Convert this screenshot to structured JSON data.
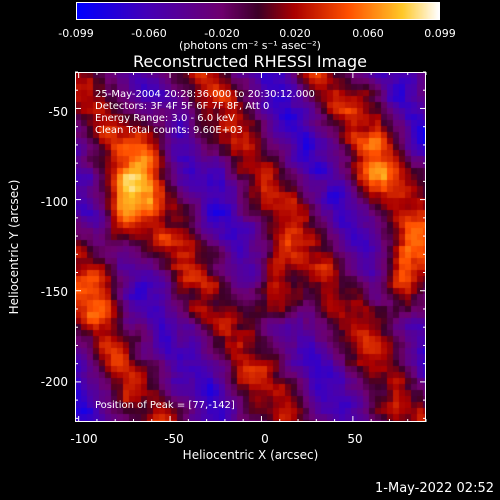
{
  "colorbar": {
    "ticks": [
      "-0.099",
      "-0.060",
      "-0.020",
      "0.020",
      "0.060",
      "0.099"
    ],
    "units": "(photons cm⁻² s⁻¹ asec⁻²)"
  },
  "title": "Reconstructed RHESSI Image",
  "annotations": {
    "time": "25-May-2004 20:28:36.000 to 20:30:12.000",
    "detectors": "Detectors: 3F 4F 5F 6F 7F 8F, Att 0",
    "energy": "Energy Range: 3.0 - 6.0 keV",
    "method": "Clean    Total counts: 9.60E+03",
    "peak": "Position of Peak = [77,-142]"
  },
  "axes": {
    "xlabel": "Heliocentric X (arcsec)",
    "ylabel": "Heliocentric Y (arcsec)",
    "xticks": [
      "-100",
      "-50",
      "0",
      "50"
    ],
    "yticks": [
      "-50",
      "-100",
      "-150",
      "-200"
    ]
  },
  "timestamp": "1-May-2022 02:52",
  "chart_data": {
    "type": "heatmap",
    "title": "Reconstructed RHESSI Image",
    "xlabel": "Heliocentric X (arcsec)",
    "ylabel": "Heliocentric Y (arcsec)",
    "xlim": [
      -102,
      90
    ],
    "ylim": [
      -222,
      -30
    ],
    "xticks": [
      -100,
      -50,
      0,
      50
    ],
    "yticks": [
      -50,
      -100,
      -150,
      -200
    ],
    "colorbar": {
      "min": -0.099,
      "max": 0.099,
      "ticks": [
        -0.099,
        -0.06,
        -0.02,
        0.02,
        0.06,
        0.099
      ],
      "colormap": "blue-purple-red-yellow-white"
    },
    "peak": [
      77,
      -142
    ],
    "bright_sources": [
      {
        "x": -75,
        "y": -105,
        "intensity": 0.085
      },
      {
        "x": 8,
        "y": -148,
        "intensity": 0.09
      },
      {
        "x": 77,
        "y": -142,
        "intensity": 0.099
      },
      {
        "x": -60,
        "y": -70,
        "intensity": 0.06
      },
      {
        "x": -88,
        "y": -145,
        "intensity": 0.045
      },
      {
        "x": 62,
        "y": -88,
        "intensity": 0.055
      }
    ]
  }
}
